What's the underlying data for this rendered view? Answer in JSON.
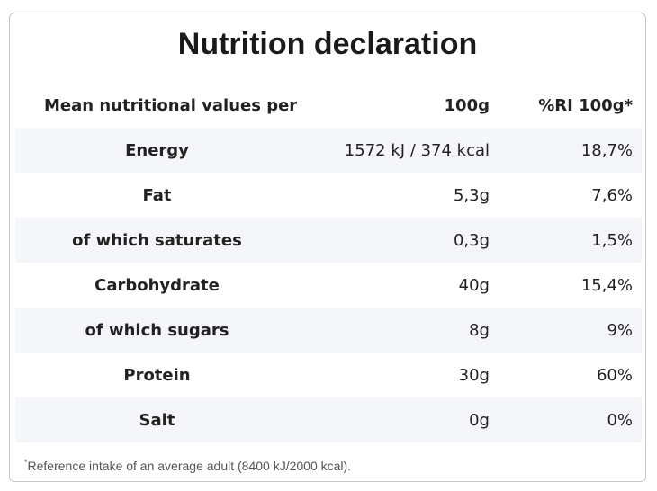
{
  "title": "Nutrition declaration",
  "header": {
    "label": "Mean nutritional values per",
    "value": "100g",
    "ri": "%RI 100g*"
  },
  "rows": [
    {
      "label": "Energy",
      "value": "1572 kJ / 374 kcal",
      "ri": "18,7%"
    },
    {
      "label": "Fat",
      "value": "5,3g",
      "ri": "7,6%"
    },
    {
      "label": "of which saturates",
      "value": "0,3g",
      "ri": "1,5%"
    },
    {
      "label": "Carbohydrate",
      "value": "40g",
      "ri": "15,4%"
    },
    {
      "label": "of which sugars",
      "value": "8g",
      "ri": "9%"
    },
    {
      "label": "Protein",
      "value": "30g",
      "ri": "60%"
    },
    {
      "label": "Salt",
      "value": "0g",
      "ri": "0%"
    }
  ],
  "footnote": {
    "marker": "*",
    "text": "Reference intake of an average adult (8400 kJ/2000 kcal)."
  }
}
